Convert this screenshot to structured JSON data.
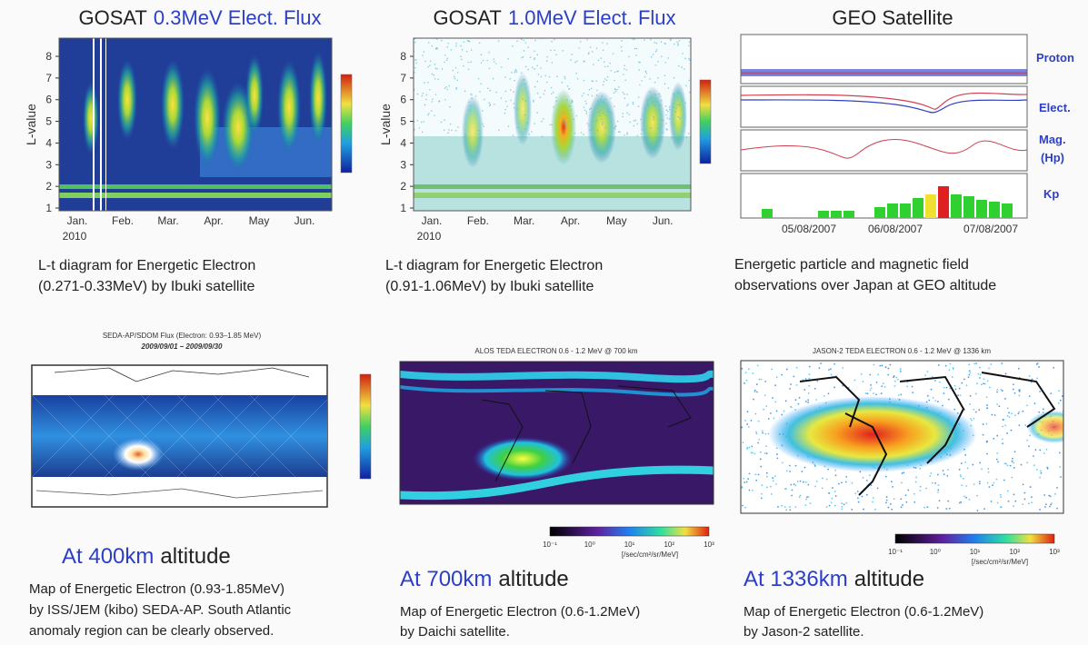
{
  "panels": [
    {
      "title": {
        "prefix": "GOSAT",
        "highlight": "0.3MeV Elect. Flux"
      },
      "y_label": "L-value",
      "yticks": [
        1,
        2,
        3,
        4,
        5,
        6,
        7,
        8
      ],
      "months": [
        "Jan.",
        "Feb.",
        "Mar.",
        "Apr.",
        "May",
        "Jun."
      ],
      "year": "2010",
      "caption": [
        "L-t diagram for  Energetic Electron",
        "(0.271-0.33MeV) by Ibuki satellite"
      ]
    },
    {
      "title": {
        "prefix": "GOSAT",
        "highlight": "1.0MeV Elect. Flux"
      },
      "y_label": "L-value",
      "yticks": [
        1,
        2,
        3,
        4,
        5,
        6,
        7,
        8
      ],
      "months": [
        "Jan.",
        "Feb.",
        "Mar.",
        "Apr.",
        "May",
        "Jun."
      ],
      "year": "2010",
      "caption": [
        "L-t diagram for  Energetic Electron",
        "(0.91-1.06MeV) by Ibuki satellite"
      ]
    },
    {
      "title": "GEO Satellite",
      "labels": [
        "Proton",
        "Elect.",
        "Mag.",
        "(Hp)",
        "Kp"
      ],
      "dates": [
        "05/08/2007",
        "06/08/2007",
        "07/08/2007"
      ],
      "caption": [
        "Energetic particle and magnetic field",
        "observations over Japan at GEO altitude"
      ]
    },
    {
      "map_title": "SEDA-AP/SDOM Flux (Electron: 0.93–1.85 MeV)",
      "map_period": "2009/09/01 – 2009/09/30",
      "heading": {
        "highlight": "At 400km",
        "rest": "altitude"
      },
      "caption": [
        "Map of Energetic Electron (0.93-1.85MeV)",
        "by ISS/JEM (kibo) SEDA-AP. South Atlantic",
        "anomaly region can be clearly observed."
      ]
    },
    {
      "map_title": "ALOS TEDA ELECTRON 0.6 - 1.2 MeV @ 700 km",
      "colorbar_labels": [
        "10⁻¹",
        "10⁰",
        "10¹",
        "10²",
        "10³"
      ],
      "colorbar_unit": "[/sec/cm²/sr/MeV]",
      "heading": {
        "highlight": "At 700km",
        "rest": "altitude"
      },
      "caption": [
        "Map of Energetic Electron (0.6-1.2MeV)",
        "by Daichi satellite."
      ]
    },
    {
      "map_title": "JASON-2 TEDA ELECTRON 0.6 - 1.2 MeV @ 1336 km",
      "colorbar_labels": [
        "10⁻¹",
        "10⁰",
        "10¹",
        "10²",
        "10³"
      ],
      "colorbar_unit": "[/sec/cm²/sr/MeV]",
      "heading": {
        "highlight": "At 1336km",
        "rest": "altitude"
      },
      "caption": [
        "Map of Energetic Electron (0.6-1.2MeV)",
        "by Jason-2 satellite."
      ]
    }
  ]
}
